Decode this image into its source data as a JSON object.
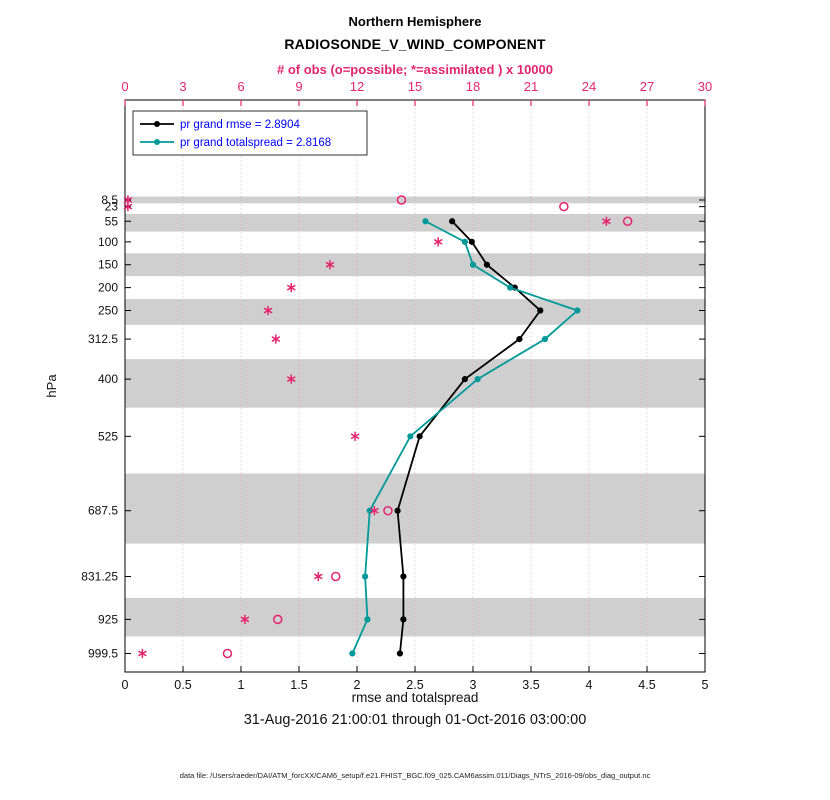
{
  "chart_data": {
    "type": "line",
    "title": "Northern Hemisphere",
    "subtitle": "RADIOSONDE_V_WIND_COMPONENT",
    "top_axis_label": "# of obs (o=possible; *=assimilated ) x 10000",
    "xlabel": "rmse and totalspread",
    "ylabel": "hPa",
    "timespan": "31-Aug-2016 21:00:01 through 01-Oct-2016 03:00:00",
    "datafile_note": "data file: /Users/raeder/DAI/ATM_forcXX/CAM6_setup/f.e21.FHIST_BGC.f09_025.CAM6assim.011/Diags_NTrS_2016-09/obs_diag_output.nc",
    "xlim": [
      0,
      5
    ],
    "x_ticks": [
      0,
      0.5,
      1,
      1.5,
      2,
      2.5,
      3,
      3.5,
      4,
      4.5,
      5
    ],
    "x_tick_labels": [
      "0",
      "0.5",
      "1",
      "1.5",
      "2",
      "2.5",
      "3",
      "3.5",
      "4",
      "4.5",
      "5"
    ],
    "top_xlim": [
      0,
      30
    ],
    "top_x_ticks": [
      0,
      3,
      6,
      9,
      12,
      15,
      18,
      21,
      24,
      27,
      30
    ],
    "top_x_tick_labels": [
      "0",
      "3",
      "6",
      "9",
      "12",
      "15",
      "18",
      "21",
      "24",
      "27",
      "30"
    ],
    "ylim": [
      1040,
      -210
    ],
    "y_axis_reversed_pressure": true,
    "y_ticks": [
      8.5,
      23,
      55,
      100,
      150,
      200,
      250,
      312.5,
      400,
      525,
      687.5,
      831.25,
      925,
      999.5
    ],
    "y_tick_labels": [
      "8.5",
      "23",
      "55",
      "100",
      "150",
      "200",
      "250",
      "312.5",
      "400",
      "525",
      "687.5",
      "831.25",
      "925",
      "999.5"
    ],
    "grid": "vertical",
    "legend_position": "top-left-inside",
    "levels": [
      8.5,
      23,
      55,
      100,
      150,
      200,
      250,
      312.5,
      400,
      525,
      687.5,
      831.25,
      925,
      999.5
    ],
    "shaded_bands": [
      [
        1,
        15.75
      ],
      [
        39,
        77.5
      ],
      [
        125,
        175
      ],
      [
        225,
        281.25
      ],
      [
        356.25,
        462.5
      ],
      [
        606.25,
        759.375
      ],
      [
        878.125,
        962.25
      ]
    ],
    "series": [
      {
        "name": "pr grand rmse",
        "legend": "pr grand rmse = 2.8904",
        "grand_value": 2.8904,
        "color": "#000000",
        "values": [
          null,
          null,
          2.82,
          2.99,
          3.12,
          3.36,
          3.58,
          3.4,
          2.93,
          2.54,
          2.35,
          2.4,
          2.4,
          2.37
        ]
      },
      {
        "name": "pr grand totalspread",
        "legend": "pr grand totalspread = 2.8168",
        "grand_value": 2.8168,
        "color": "#009999",
        "values": [
          null,
          null,
          2.59,
          2.93,
          3.0,
          3.32,
          3.9,
          3.62,
          3.04,
          2.46,
          2.11,
          2.07,
          2.09,
          1.96
        ]
      }
    ],
    "obs_counts": {
      "axis": "top",
      "units_multiplier": 10000,
      "possible_marker": "o",
      "assimilated_marker": "*",
      "possible": [
        14.3,
        22.7,
        26.0,
        null,
        null,
        null,
        null,
        null,
        null,
        null,
        13.6,
        10.9,
        7.9,
        5.3
      ],
      "assimilated": [
        0.15,
        0.15,
        24.9,
        16.2,
        10.6,
        8.6,
        7.4,
        7.8,
        8.6,
        11.9,
        12.9,
        10.0,
        6.2,
        0.9
      ]
    },
    "colors": {
      "obs_pink": "#e3256f",
      "rmse_black": "#000000",
      "totalspread_teal": "#009999",
      "legend_text_blue": "#0000ff",
      "band_gray": "#cfcfcf",
      "grid_pink": "#dda8c0",
      "axis_black": "#000000"
    }
  }
}
